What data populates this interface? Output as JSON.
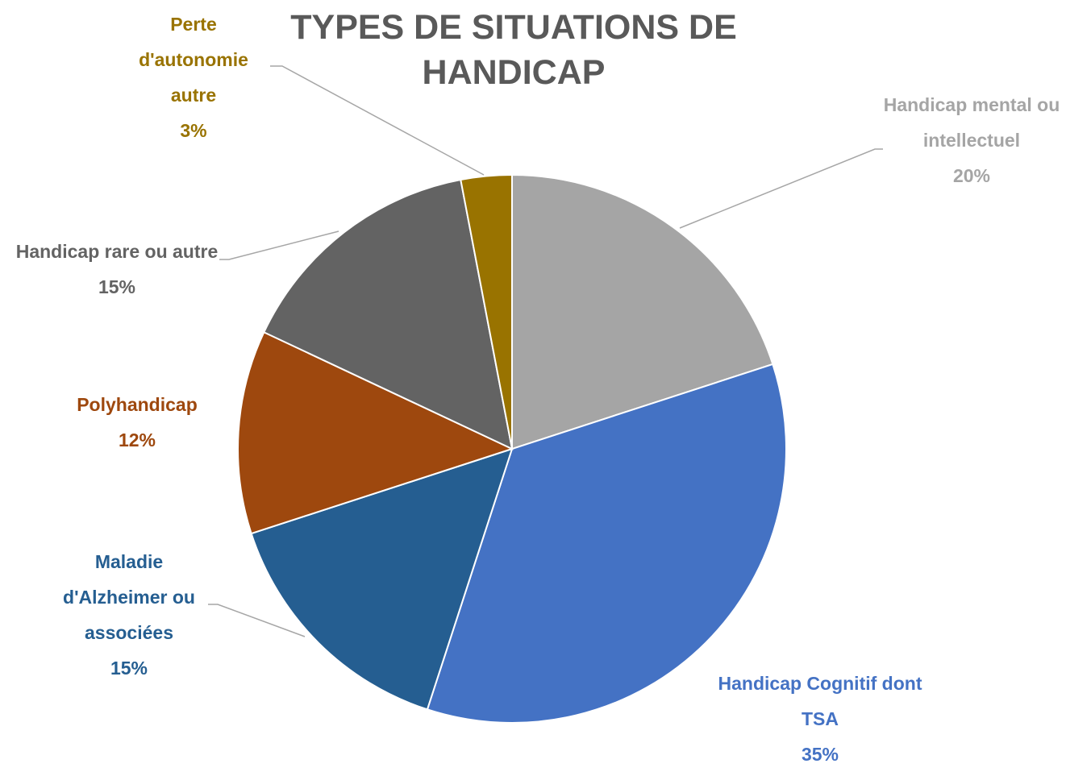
{
  "chart_data": {
    "type": "pie",
    "title": "TYPES DE SITUATIONS DE HANDICAP",
    "categories": [
      "Handicap mental ou intellectuel",
      "Handicap Cognitif dont TSA",
      "Maladie d'Alzheimer ou associées",
      "Polyhandicap",
      "Handicap rare ou autre",
      "Perte d'autonomie autre"
    ],
    "values": [
      20,
      35,
      15,
      12,
      15,
      3
    ],
    "value_labels": [
      "20%",
      "35%",
      "15%",
      "12%",
      "15%",
      "3%"
    ],
    "colors": [
      "#a5a5a5",
      "#4472c4",
      "#255e91",
      "#9e480e",
      "#636363",
      "#997300"
    ]
  }
}
